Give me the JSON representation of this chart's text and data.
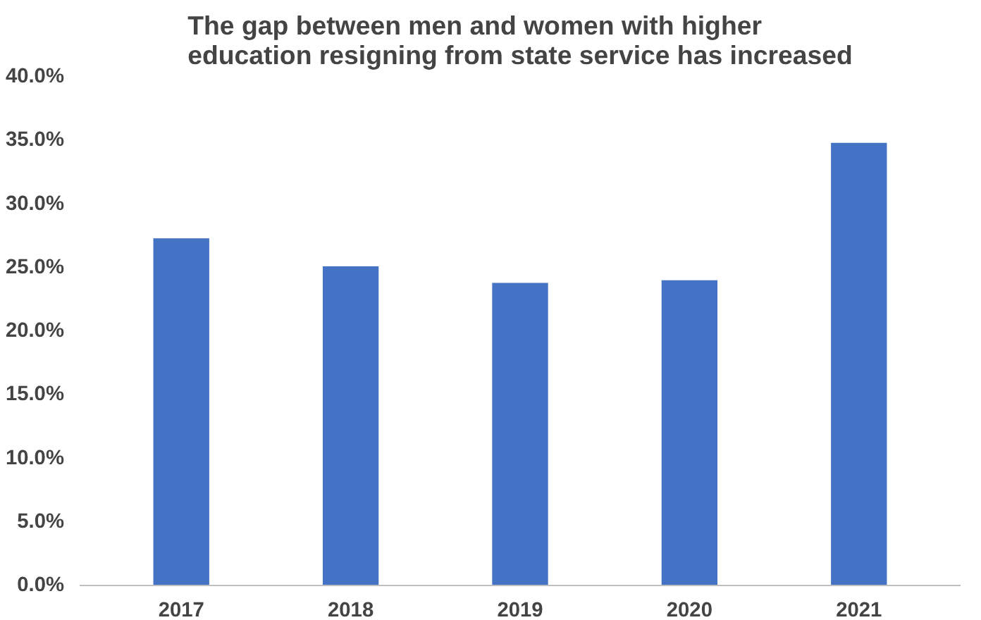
{
  "chart_data": {
    "type": "bar",
    "title": "The gap between men and women with higher\neducation resigning from state service has increased",
    "categories": [
      "2017",
      "2018",
      "2019",
      "2020",
      "2021"
    ],
    "values": [
      27.3,
      25.1,
      23.8,
      24.0,
      34.8
    ],
    "color": "#4472c4",
    "ylim": [
      0,
      40
    ],
    "yticks": [
      {
        "value": 0,
        "label": "0.0%"
      },
      {
        "value": 5,
        "label": "5.0%"
      },
      {
        "value": 10,
        "label": "10.0%"
      },
      {
        "value": 15,
        "label": "15.0%"
      },
      {
        "value": 20,
        "label": "20.0%"
      },
      {
        "value": 25,
        "label": "25.0%"
      },
      {
        "value": 30,
        "label": "30.0%"
      },
      {
        "value": 35,
        "label": "35.0%"
      },
      {
        "value": 40,
        "label": "40.0%"
      }
    ],
    "grid": false
  }
}
